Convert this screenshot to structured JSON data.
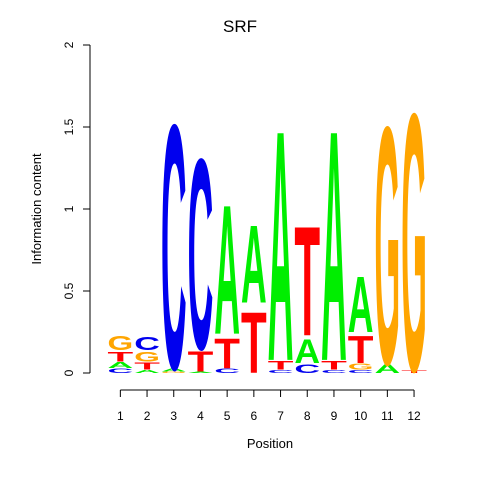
{
  "chart_data": {
    "type": "sequence-logo",
    "title": "SRF",
    "xlabel": "Position",
    "ylabel": "Information content",
    "ylim": [
      0,
      2
    ],
    "yticks": [
      "0",
      "0.5",
      "1",
      "1.5",
      "2"
    ],
    "positions": [
      "1",
      "2",
      "3",
      "4",
      "5",
      "6",
      "7",
      "8",
      "9",
      "10",
      "11",
      "12"
    ],
    "colors": {
      "A": "#00ee00",
      "C": "#0000ee",
      "G": "#ffa500",
      "T": "#ff0000"
    },
    "columns": [
      [
        {
          "base": "C",
          "value": 0.03
        },
        {
          "base": "A",
          "value": 0.04
        },
        {
          "base": "T",
          "value": 0.07
        },
        {
          "base": "G",
          "value": 0.1
        }
      ],
      [
        {
          "base": "A",
          "value": 0.02
        },
        {
          "base": "T",
          "value": 0.05
        },
        {
          "base": "G",
          "value": 0.07
        },
        {
          "base": "C",
          "value": 0.09
        }
      ],
      [
        {
          "base": "G",
          "value": 0.01
        },
        {
          "base": "A",
          "value": 0.02
        },
        {
          "base": "C",
          "value": 1.72
        }
      ],
      [
        {
          "base": "A",
          "value": 0.01
        },
        {
          "base": "T",
          "value": 0.14
        },
        {
          "base": "C",
          "value": 1.34
        }
      ],
      [
        {
          "base": "C",
          "value": 0.03
        },
        {
          "base": "T",
          "value": 0.21
        },
        {
          "base": "A",
          "value": 0.91
        }
      ],
      [
        {
          "base": "T",
          "value": 0.43
        },
        {
          "base": "A",
          "value": 0.55
        }
      ],
      [
        {
          "base": "C",
          "value": 0.02
        },
        {
          "base": "T",
          "value": 0.06
        },
        {
          "base": "A",
          "value": 1.62
        }
      ],
      [
        {
          "base": "C",
          "value": 0.06
        },
        {
          "base": "A",
          "value": 0.17
        },
        {
          "base": "T",
          "value": 0.77
        }
      ],
      [
        {
          "base": "C",
          "value": 0.02
        },
        {
          "base": "T",
          "value": 0.06
        },
        {
          "base": "A",
          "value": 1.62
        }
      ],
      [
        {
          "base": "C",
          "value": 0.02
        },
        {
          "base": "G",
          "value": 0.04
        },
        {
          "base": "T",
          "value": 0.19
        },
        {
          "base": "A",
          "value": 0.39
        }
      ],
      [
        {
          "base": "A",
          "value": 0.06
        },
        {
          "base": "G",
          "value": 1.67
        }
      ],
      [
        {
          "base": "T",
          "value": 0.02
        },
        {
          "base": "G",
          "value": 1.81
        }
      ]
    ]
  }
}
